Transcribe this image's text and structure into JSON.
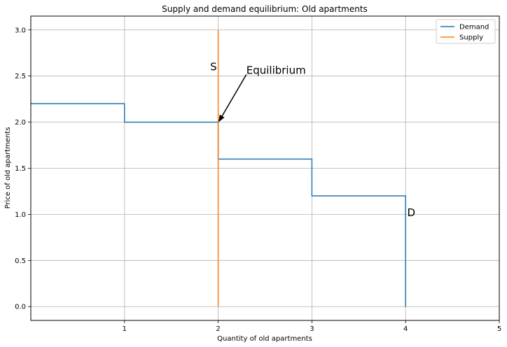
{
  "chart_data": {
    "type": "line",
    "title": "Supply and demand equilibrium: Old apartments",
    "xlabel": "Quantity of old apartments",
    "ylabel": "Price of old apartments",
    "xlim": [
      0,
      5
    ],
    "ylim": [
      -0.15,
      3.15
    ],
    "xticks": [
      1,
      2,
      3,
      4,
      5
    ],
    "xtick_labels": [
      "1",
      "2",
      "3",
      "4",
      "5"
    ],
    "yticks": [
      0.0,
      0.5,
      1.0,
      1.5,
      2.0,
      2.5,
      3.0
    ],
    "ytick_labels": [
      "0.0",
      "0.5",
      "1.0",
      "1.5",
      "2.0",
      "2.5",
      "3.0"
    ],
    "grid": true,
    "legend_position": "top-right",
    "series": [
      {
        "name": "Demand",
        "color": "#1f77b4",
        "points": [
          [
            0,
            2.2
          ],
          [
            1,
            2.2
          ],
          [
            1,
            2.0
          ],
          [
            2,
            2.0
          ],
          [
            2,
            1.6
          ],
          [
            3,
            1.6
          ],
          [
            3,
            1.2
          ],
          [
            4,
            1.2
          ],
          [
            4,
            0.0
          ]
        ]
      },
      {
        "name": "Supply",
        "color": "#ff7f0e",
        "points": [
          [
            2,
            0.0
          ],
          [
            2,
            3.0
          ]
        ]
      }
    ],
    "annotations": [
      {
        "text": "S",
        "x": 1.95,
        "y": 2.6
      },
      {
        "text": "D",
        "x": 4.06,
        "y": 1.02
      },
      {
        "text": "Equilibrium",
        "x": 2.3,
        "y": 2.5,
        "arrow_to": [
          2.0,
          2.0
        ]
      }
    ]
  }
}
